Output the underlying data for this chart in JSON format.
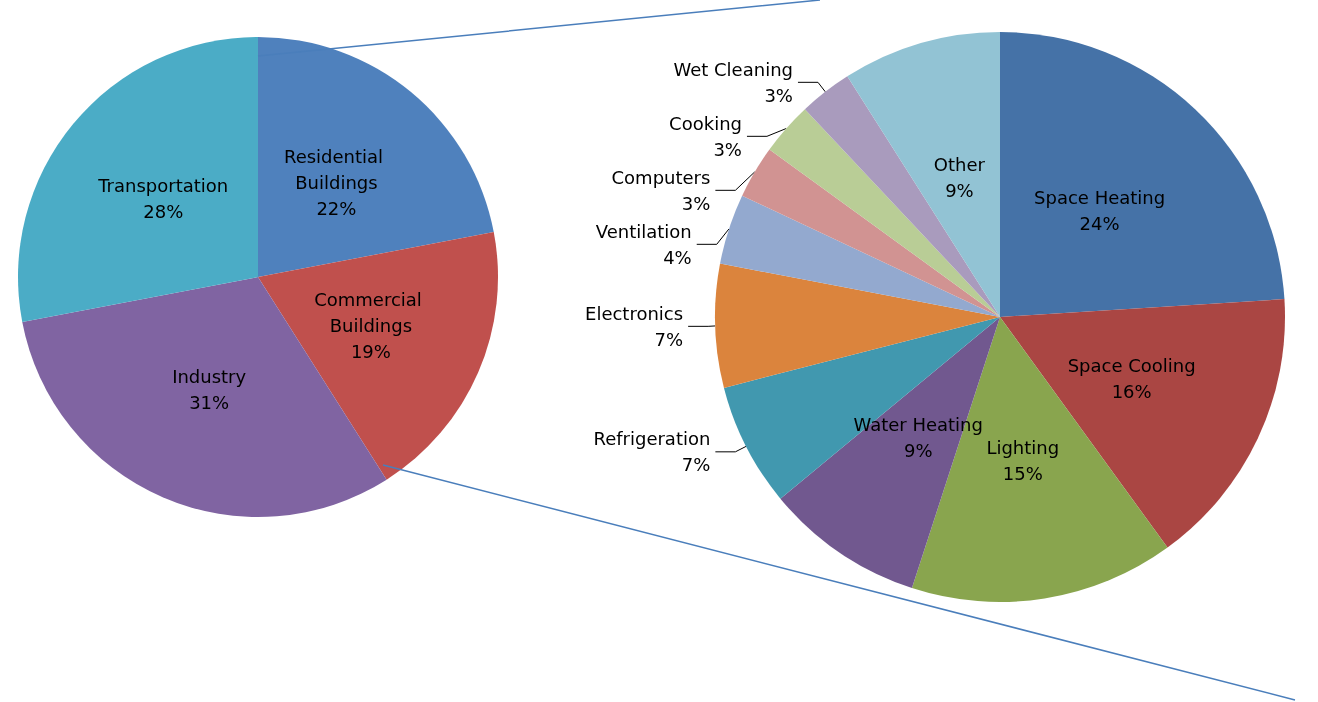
{
  "chart_data": [
    {
      "type": "pie",
      "categories": [
        "Residential Buildings",
        "Commercial Buildings",
        "Industry",
        "Transportation"
      ],
      "values": [
        22,
        19,
        31,
        28
      ],
      "colors": [
        "#4f81bd",
        "#c0504d",
        "#8064a2",
        "#4bacc6"
      ],
      "value_labels": [
        "22%",
        "19%",
        "31%",
        "28%"
      ]
    },
    {
      "type": "pie",
      "categories": [
        "Space Heating",
        "Space Cooling",
        "Lighting",
        "Water Heating",
        "Refrigeration",
        "Electronics",
        "Ventilation",
        "Computers",
        "Cooking",
        "Wet Cleaning",
        "Other"
      ],
      "values": [
        24,
        16,
        15,
        9,
        7,
        7,
        4,
        3,
        3,
        3,
        9
      ],
      "colors": [
        "#4572a7",
        "#aa4643",
        "#89a54e",
        "#71588f",
        "#4198af",
        "#db843d",
        "#93a9cf",
        "#d19392",
        "#b9cd96",
        "#a99bbd",
        "#92c3d4"
      ],
      "value_labels": [
        "24%",
        "16%",
        "15%",
        "9%",
        "7%",
        "7%",
        "4%",
        "3%",
        "3%",
        "3%",
        "9%"
      ]
    }
  ]
}
